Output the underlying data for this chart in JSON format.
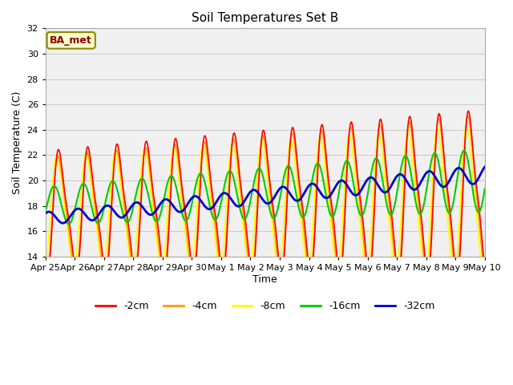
{
  "title": "Soil Temperatures Set B",
  "xlabel": "Time",
  "ylabel": "Soil Temperature (C)",
  "ylim": [
    14,
    32
  ],
  "yticks": [
    14,
    16,
    18,
    20,
    22,
    24,
    26,
    28,
    30,
    32
  ],
  "annotation": "BA_met",
  "colors": {
    "-2cm": "#ff0000",
    "-4cm": "#ff9900",
    "-8cm": "#ffff00",
    "-16cm": "#00cc00",
    "-32cm": "#0000cc"
  },
  "line_widths": {
    "-2cm": 1.2,
    "-4cm": 1.2,
    "-8cm": 1.2,
    "-16cm": 1.5,
    "-32cm": 2.0
  },
  "background_color": "#ffffff",
  "plot_bg_color": "#f0f0f0",
  "x_labels": [
    "Apr 25",
    "Apr 26",
    "Apr 27",
    "Apr 28",
    "Apr 29",
    "Apr 30",
    "May 1",
    "May 2",
    "May 3",
    "May 4",
    "May 5",
    "May 6",
    "May 7",
    "May 8",
    "May 9",
    "May 10"
  ],
  "figsize": [
    6.4,
    4.8
  ],
  "dpi": 100
}
